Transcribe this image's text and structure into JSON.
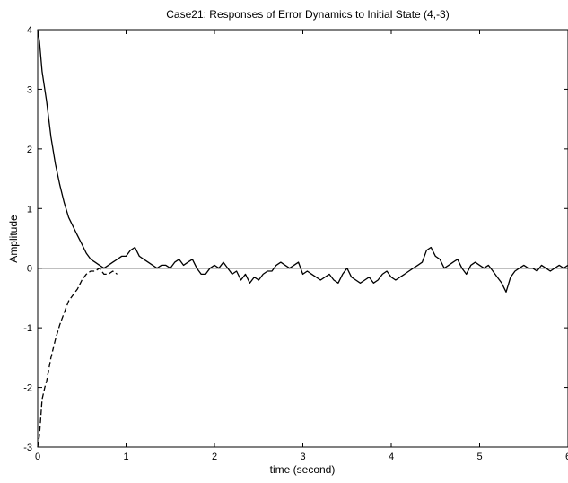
{
  "chart_data": {
    "type": "line",
    "title": "Case21: Responses of Error Dynamics to Initial State (4,-3)",
    "xlabel": "time (second)",
    "ylabel": "Amplitude",
    "xlim": [
      0,
      6
    ],
    "ylim": [
      -3,
      4
    ],
    "xticks": [
      0,
      1,
      2,
      3,
      4,
      5,
      6
    ],
    "yticks": [
      -3,
      -2,
      -1,
      0,
      1,
      2,
      3,
      4
    ],
    "grid": false,
    "reference_line_y": 0,
    "series": [
      {
        "style": "solid",
        "x": [
          0,
          0.02,
          0.05,
          0.1,
          0.15,
          0.2,
          0.25,
          0.3,
          0.35,
          0.4,
          0.45,
          0.5,
          0.55,
          0.6,
          0.65,
          0.7,
          0.75,
          0.8,
          0.85,
          0.9,
          0.95,
          1.0,
          1.05,
          1.1,
          1.15,
          1.2,
          1.25,
          1.3,
          1.35,
          1.4,
          1.45,
          1.5,
          1.55,
          1.6,
          1.65,
          1.7,
          1.75,
          1.8,
          1.85,
          1.9,
          1.95,
          2.0,
          2.05,
          2.1,
          2.15,
          2.2,
          2.25,
          2.3,
          2.35,
          2.4,
          2.45,
          2.5,
          2.55,
          2.6,
          2.65,
          2.7,
          2.75,
          2.8,
          2.85,
          2.9,
          2.95,
          3.0,
          3.05,
          3.1,
          3.15,
          3.2,
          3.25,
          3.3,
          3.35,
          3.4,
          3.45,
          3.5,
          3.55,
          3.6,
          3.65,
          3.7,
          3.75,
          3.8,
          3.85,
          3.9,
          3.95,
          4.0,
          4.05,
          4.1,
          4.15,
          4.2,
          4.25,
          4.3,
          4.35,
          4.4,
          4.45,
          4.5,
          4.55,
          4.6,
          4.65,
          4.7,
          4.75,
          4.8,
          4.85,
          4.9,
          4.95,
          5.0,
          5.05,
          5.1,
          5.15,
          5.2,
          5.25,
          5.3,
          5.35,
          5.4,
          5.45,
          5.5,
          5.55,
          5.6,
          5.65,
          5.7,
          5.75,
          5.8,
          5.85,
          5.9,
          5.95,
          6.0
        ],
        "y": [
          4.0,
          3.8,
          3.3,
          2.8,
          2.2,
          1.75,
          1.4,
          1.1,
          0.85,
          0.7,
          0.55,
          0.4,
          0.25,
          0.15,
          0.1,
          0.05,
          0.0,
          0.05,
          0.1,
          0.15,
          0.2,
          0.2,
          0.3,
          0.35,
          0.2,
          0.15,
          0.1,
          0.05,
          0.0,
          0.05,
          0.05,
          0.0,
          0.1,
          0.15,
          0.05,
          0.1,
          0.15,
          0.0,
          -0.1,
          -0.1,
          0.0,
          0.05,
          0.0,
          0.1,
          0.0,
          -0.1,
          -0.05,
          -0.2,
          -0.1,
          -0.25,
          -0.15,
          -0.2,
          -0.1,
          -0.05,
          -0.05,
          0.05,
          0.1,
          0.05,
          0.0,
          0.05,
          0.1,
          -0.1,
          -0.05,
          -0.1,
          -0.15,
          -0.2,
          -0.15,
          -0.1,
          -0.2,
          -0.25,
          -0.1,
          0.0,
          -0.15,
          -0.2,
          -0.25,
          -0.2,
          -0.15,
          -0.25,
          -0.2,
          -0.1,
          -0.05,
          -0.15,
          -0.2,
          -0.15,
          -0.1,
          -0.05,
          0.0,
          0.05,
          0.1,
          0.3,
          0.35,
          0.2,
          0.15,
          0.0,
          0.05,
          0.1,
          0.15,
          0.0,
          -0.1,
          0.05,
          0.1,
          0.05,
          0.0,
          0.05,
          -0.05,
          -0.15,
          -0.25,
          -0.4,
          -0.15,
          -0.05,
          0.0,
          0.05,
          0.0,
          0.0,
          -0.05,
          0.05,
          0.0,
          -0.05,
          0.0,
          0.05,
          0.0,
          0.05
        ]
      },
      {
        "style": "dashed",
        "x": [
          0,
          0.02,
          0.05,
          0.08,
          0.1,
          0.15,
          0.2,
          0.25,
          0.3,
          0.35,
          0.4,
          0.45,
          0.5,
          0.55,
          0.6,
          0.65,
          0.7,
          0.75,
          0.8,
          0.85,
          0.9
        ],
        "y": [
          -3.0,
          -2.8,
          -2.2,
          -2.0,
          -1.9,
          -1.5,
          -1.2,
          -0.95,
          -0.75,
          -0.55,
          -0.45,
          -0.35,
          -0.2,
          -0.1,
          -0.05,
          -0.05,
          0.0,
          -0.1,
          -0.1,
          -0.05,
          -0.1
        ]
      }
    ]
  }
}
